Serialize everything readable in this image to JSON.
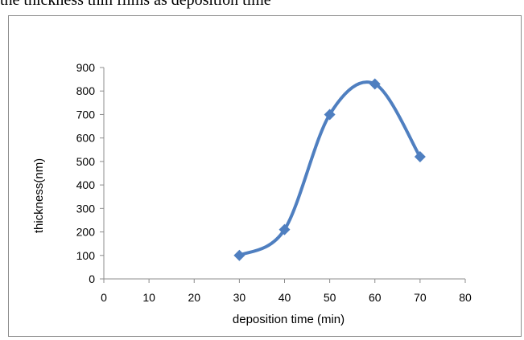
{
  "caption": "the thickness thin films as deposition time",
  "chart_data": {
    "type": "line",
    "smooth": true,
    "markers": "diamond",
    "color": "#4f7fc0",
    "title": "",
    "xlabel": "deposition time (min)",
    "ylabel": "thickness(nm)",
    "xlim": [
      0,
      80
    ],
    "ylim": [
      0,
      900
    ],
    "xticks": [
      0,
      10,
      20,
      30,
      40,
      50,
      60,
      70,
      80
    ],
    "yticks": [
      0,
      100,
      200,
      300,
      400,
      500,
      600,
      700,
      800,
      900
    ],
    "grid": false,
    "legend": "none",
    "x": [
      30,
      40,
      50,
      60,
      70
    ],
    "y": [
      100,
      210,
      700,
      830,
      520
    ]
  }
}
